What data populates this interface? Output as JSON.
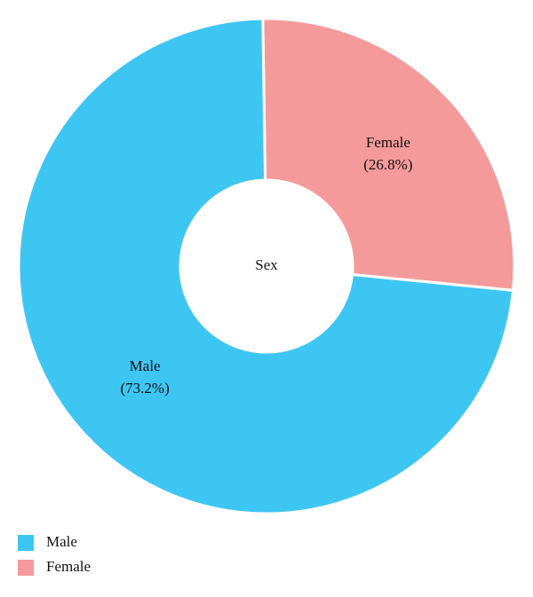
{
  "chart_data": {
    "type": "donut",
    "center_label": "Sex",
    "categories": [
      "Female",
      "Male"
    ],
    "values": [
      26.8,
      73.2
    ],
    "value_labels": [
      "(26.8%)",
      "(73.2%)"
    ],
    "colors": [
      "#f59a9a",
      "#3ec6f2"
    ],
    "legend": {
      "position": "bottom-left",
      "order": [
        "Male",
        "Female"
      ]
    }
  }
}
